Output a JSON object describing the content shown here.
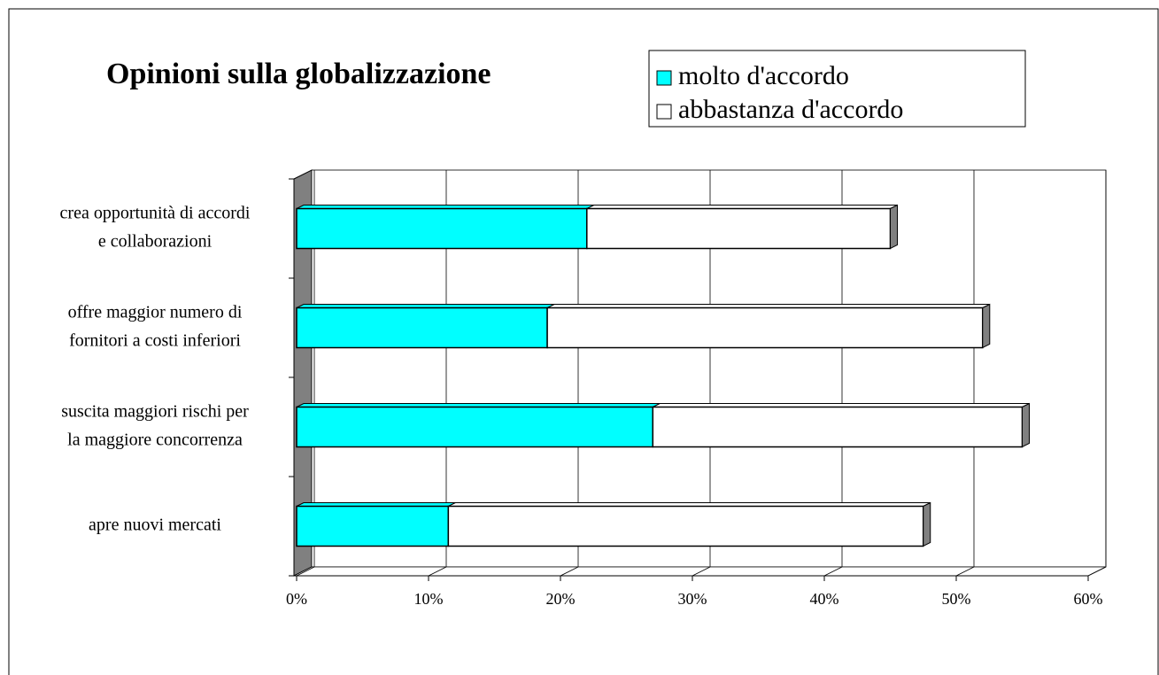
{
  "chart_data": {
    "type": "bar",
    "orientation": "horizontal",
    "stacked": true,
    "three_d": true,
    "title": "Opinioni sulla globalizzazione",
    "categories": [
      [
        "crea opportunità di accordi",
        "e collaborazioni"
      ],
      [
        "offre maggior numero di",
        "fornitori a costi inferiori"
      ],
      [
        "suscita maggiori rischi per",
        "la maggiore concorrenza"
      ],
      [
        "apre nuovi mercati"
      ]
    ],
    "series": [
      {
        "name": "molto d'accordo",
        "color": "#00ffff",
        "values": [
          22,
          19,
          27,
          11.5
        ]
      },
      {
        "name": "abbastanza d'accordo",
        "color": "#ffffff",
        "values": [
          23,
          33,
          28,
          36
        ]
      }
    ],
    "xlim": [
      0,
      60
    ],
    "xticks": [
      {
        "value": 0,
        "label": "0%"
      },
      {
        "value": 10,
        "label": "10%"
      },
      {
        "value": 20,
        "label": "20%"
      },
      {
        "value": 30,
        "label": "30%"
      },
      {
        "value": 40,
        "label": "40%"
      },
      {
        "value": 50,
        "label": "50%"
      },
      {
        "value": 60,
        "label": "60%"
      }
    ],
    "grid": true,
    "legend": "top-right"
  }
}
